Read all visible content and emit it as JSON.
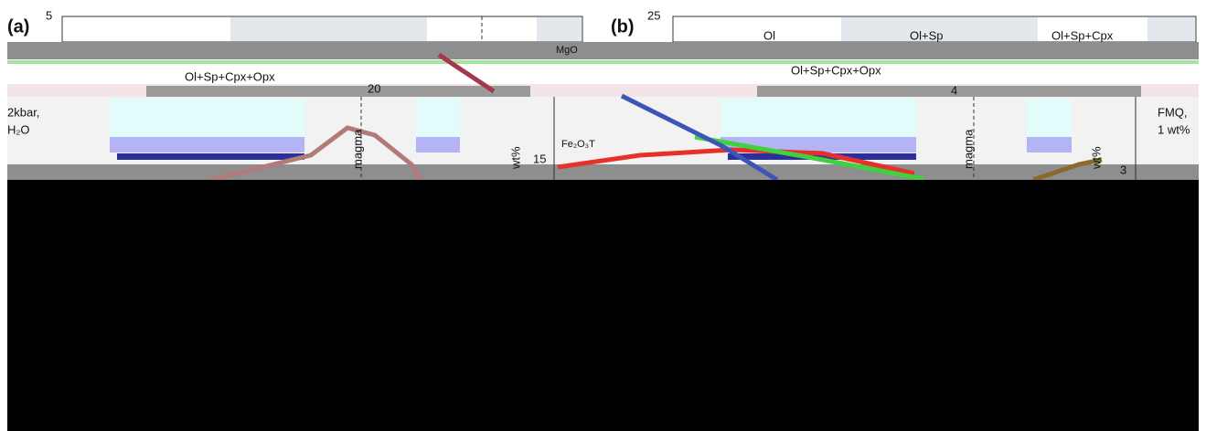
{
  "panel_a": {
    "label": "(a)",
    "top_tick": "5",
    "field": "Ol+Sp+Cpx+Opx",
    "mid_tick": "20",
    "condition_1": "2kbar,",
    "condition_2": "H₂O",
    "curve_label": "magma",
    "axis_unit": "wt%",
    "axis_tick": "15",
    "oxide": "Fe₂O₃T",
    "oxide_2": "MgO"
  },
  "panel_b": {
    "label": "(b)",
    "top_tick": "25",
    "fields": [
      "Ol",
      "Ol+Sp",
      "Ol+Sp+Cpx"
    ],
    "field": "Ol+Sp+Cpx+Opx",
    "mid_tick": "4",
    "condition_1": "FMQ,",
    "condition_2": "1 wt%",
    "curve_label": "magma",
    "axis_unit": "wt%",
    "axis_tick": "3"
  }
}
